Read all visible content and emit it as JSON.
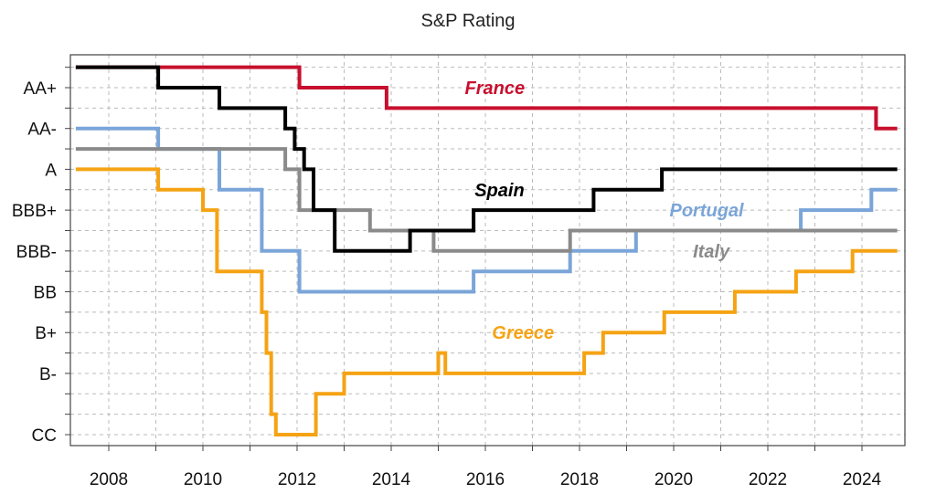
{
  "chart_data": {
    "type": "line",
    "title": "S&P Rating",
    "xlabel": "",
    "ylabel": "",
    "xlim": [
      2007.3,
      2024.75
    ],
    "x_ticks": [
      "2008",
      "2010",
      "2012",
      "2014",
      "2016",
      "2018",
      "2020",
      "2022",
      "2024"
    ],
    "y_ticks": [
      "AA+",
      "AA-",
      "A",
      "BBB+",
      "BBB-",
      "BB",
      "B+",
      "B-",
      "CC"
    ],
    "grid": true,
    "series": [
      {
        "name": "France",
        "color": "#c8102e",
        "x": [
          2007.3,
          2012.05,
          2012.05,
          2013.9,
          2013.9,
          2024.3,
          2024.3,
          2024.75
        ],
        "y": [
          "AAA",
          "AAA",
          "AA+",
          "AA+",
          "AA",
          "AA",
          "AA-",
          "AA-"
        ]
      },
      {
        "name": "Spain",
        "color": "#000000",
        "x": [
          2007.3,
          2009.05,
          2009.05,
          2010.35,
          2010.35,
          2011.75,
          2011.75,
          2011.95,
          2011.95,
          2012.15,
          2012.15,
          2012.35,
          2012.35,
          2012.8,
          2012.8,
          2014.4,
          2014.4,
          2015.75,
          2015.75,
          2018.3,
          2018.3,
          2019.75,
          2019.75,
          2024.75
        ],
        "y": [
          "AAA",
          "AAA",
          "AA+",
          "AA+",
          "AA",
          "AA",
          "AA-",
          "AA-",
          "A+",
          "A+",
          "A",
          "A",
          "BBB+",
          "BBB+",
          "BBB-",
          "BBB-",
          "BBB",
          "BBB",
          "BBB+",
          "BBB+",
          "A-",
          "A-",
          "A",
          "A"
        ]
      },
      {
        "name": "Portugal",
        "color": "#7aa5d8",
        "x": [
          2007.3,
          2009.05,
          2009.05,
          2010.35,
          2010.35,
          2011.25,
          2011.25,
          2012.05,
          2012.05,
          2015.75,
          2015.75,
          2017.8,
          2017.8,
          2019.2,
          2019.2,
          2022.7,
          2022.7,
          2024.2,
          2024.2,
          2024.75
        ],
        "y": [
          "AA-",
          "AA-",
          "A+",
          "A+",
          "A-",
          "A-",
          "BBB-",
          "BBB-",
          "BB",
          "BB",
          "BB+",
          "BB+",
          "BBB-",
          "BBB-",
          "BBB",
          "BBB",
          "BBB+",
          "BBB+",
          "A-",
          "A-"
        ]
      },
      {
        "name": "Italy",
        "color": "#8a8a8a",
        "x": [
          2007.3,
          2011.75,
          2011.75,
          2012.05,
          2012.05,
          2013.55,
          2013.55,
          2014.9,
          2014.9,
          2017.8,
          2017.8,
          2024.75
        ],
        "y": [
          "A+",
          "A+",
          "A",
          "A",
          "BBB+",
          "BBB+",
          "BBB",
          "BBB",
          "BBB-",
          "BBB-",
          "BBB",
          "BBB"
        ]
      },
      {
        "name": "Greece",
        "color": "#f5a314",
        "x": [
          2007.3,
          2009.05,
          2009.05,
          2010.0,
          2010.0,
          2010.3,
          2010.3,
          2011.25,
          2011.25,
          2011.35,
          2011.35,
          2011.45,
          2011.45,
          2011.55,
          2011.55,
          2011.65,
          2011.65,
          2012.4,
          2012.4,
          2013.0,
          2013.0,
          2015.0,
          2015.0,
          2015.15,
          2015.15,
          2015.3,
          2015.3,
          2016.05,
          2016.05,
          2018.1,
          2018.1,
          2018.5,
          2018.5,
          2019.8,
          2019.8,
          2021.3,
          2021.3,
          2022.6,
          2022.6,
          2023.8,
          2023.8,
          2024.75
        ],
        "y": [
          "A",
          "A",
          "A-",
          "A-",
          "BBB+",
          "BBB+",
          "BB+",
          "BB+",
          "BB-",
          "BB-",
          "B",
          "B",
          "CCC",
          "CCC",
          "CC",
          "CC",
          "CC",
          "CC",
          "CCC+",
          "CCC+",
          "B-",
          "B-",
          "B",
          "B",
          "B-",
          "B-",
          "B-",
          "B-",
          "B-",
          "B-",
          "B",
          "B",
          "B+",
          "B+",
          "BB-",
          "BB-",
          "BB",
          "BB",
          "BB+",
          "BB+",
          "BBB-",
          "BBB-"
        ]
      }
    ],
    "labels": [
      {
        "text": "France",
        "series": "France",
        "x": 2016.2,
        "y": "AA+"
      },
      {
        "text": "Spain",
        "series": "Spain",
        "x": 2016.3,
        "y": "A-"
      },
      {
        "text": "Portugal",
        "series": "Portugal",
        "x": 2020.7,
        "y": "BBB+"
      },
      {
        "text": "Italy",
        "series": "Italy",
        "x": 2020.8,
        "y": "BBB-"
      },
      {
        "text": "Greece",
        "series": "Greece",
        "x": 2016.8,
        "y": "B+"
      }
    ]
  }
}
